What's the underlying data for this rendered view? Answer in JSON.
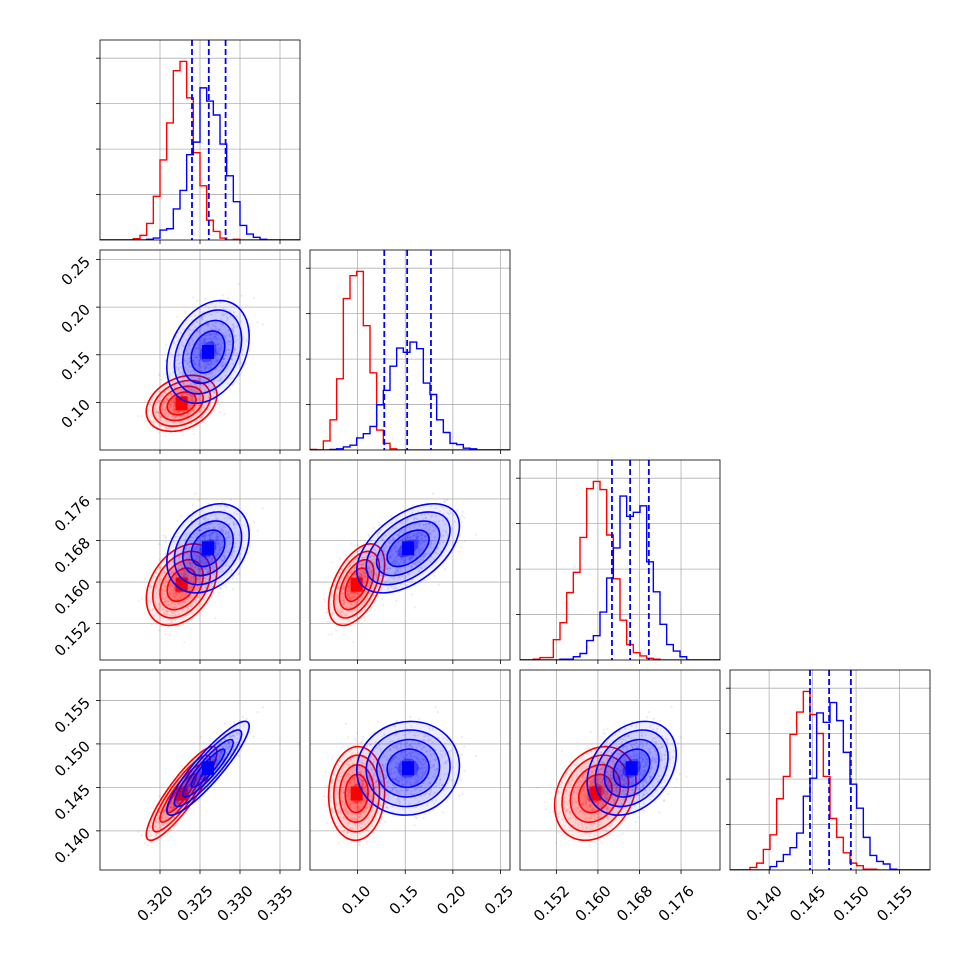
{
  "colors": {
    "red": "#ff0000",
    "blue": "#0000ff",
    "grid": "#b0b0b0"
  },
  "chart_data": {
    "type": "corner",
    "grid": true,
    "params": [
      {
        "range": [
          0.3125,
          0.3375
        ],
        "ticks": [
          0.32,
          0.325,
          0.33,
          0.335
        ],
        "tick_labels": [
          "0.320",
          "0.325",
          "0.330",
          "0.335"
        ]
      },
      {
        "range": [
          0.05,
          0.26
        ],
        "ticks": [
          0.1,
          0.15,
          0.2,
          0.25
        ],
        "tick_labels": [
          "0.10",
          "0.15",
          "0.20",
          "0.25"
        ]
      },
      {
        "range": [
          0.145,
          0.1835
        ],
        "ticks": [
          0.152,
          0.16,
          0.168,
          0.176
        ],
        "tick_labels": [
          "0.152",
          "0.160",
          "0.168",
          "0.176"
        ]
      },
      {
        "range": [
          0.1355,
          0.1585
        ],
        "ticks": [
          0.14,
          0.145,
          0.15,
          0.155
        ],
        "tick_labels": [
          "0.140",
          "0.145",
          "0.150",
          "0.155"
        ]
      }
    ],
    "series": [
      {
        "color": "#ff0000",
        "means": [
          0.3227,
          0.099,
          0.1595,
          0.1443
        ],
        "sigmas": [
          0.0018,
          0.012,
          0.0032,
          0.0022
        ],
        "correlations": [
          [
            1,
            0.3,
            0.35,
            0.88
          ],
          [
            0.3,
            1,
            0.5,
            0.05
          ],
          [
            0.35,
            0.5,
            1,
            0.25
          ],
          [
            0.88,
            0.05,
            0.25,
            1
          ]
        ]
      },
      {
        "color": "#0000ff",
        "means": [
          0.326,
          0.153,
          0.1665,
          0.1472
        ],
        "sigmas": [
          0.0021,
          0.022,
          0.0035,
          0.0022
        ],
        "correlations": [
          [
            1,
            0.3,
            0.3,
            0.9
          ],
          [
            0.3,
            1,
            0.5,
            0.05
          ],
          [
            0.3,
            0.5,
            1,
            0.3
          ],
          [
            0.9,
            0.05,
            0.3,
            1
          ]
        ]
      }
    ],
    "quantile_lines": {
      "color": "#0000ff",
      "style": "dashed",
      "values": [
        [
          0.324,
          0.3261,
          0.3282
        ],
        [
          0.128,
          0.152,
          0.177
        ],
        [
          0.1627,
          0.1662,
          0.1698
        ],
        [
          0.1447,
          0.1469,
          0.1494
        ]
      ]
    }
  }
}
